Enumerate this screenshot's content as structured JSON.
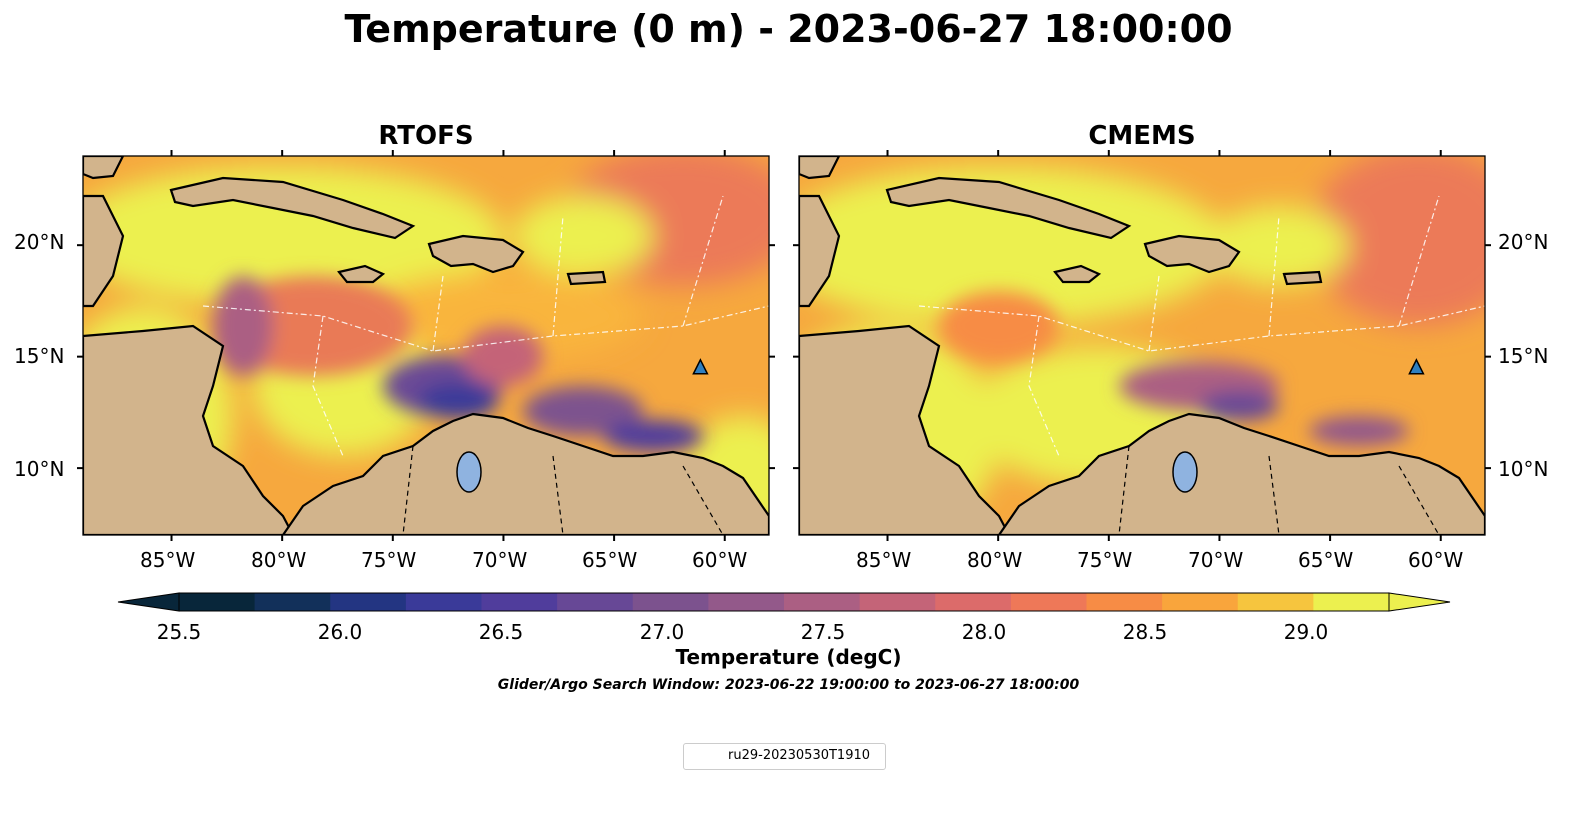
{
  "figure": {
    "title": "Temperature (0 m) - 2023-06-27 18:00:00",
    "search_window": "Glider/Argo Search Window: 2023-06-22 19:00:00 to 2023-06-27 18:00:00"
  },
  "panels": [
    {
      "title": "RTOFS",
      "marker": {
        "lon": -61.1,
        "lat": 14.5
      }
    },
    {
      "title": "CMEMS",
      "marker": {
        "lon": -61.1,
        "lat": 14.5
      }
    }
  ],
  "map_extent": {
    "lon_min": -89,
    "lon_max": -58,
    "lat_min": 7,
    "lat_max": 24
  },
  "axes": {
    "x_ticks": [
      "85°W",
      "80°W",
      "75°W",
      "70°W",
      "65°W",
      "60°W"
    ],
    "y_ticks": [
      "20°N",
      "15°N",
      "10°N"
    ]
  },
  "colorbar": {
    "label": "Temperature (degC)",
    "tick_labels": [
      "25.5",
      "26.0",
      "26.5",
      "27.0",
      "27.5",
      "28.0",
      "28.5",
      "29.0"
    ],
    "range": [
      25.5,
      29.25
    ],
    "extend": "both",
    "colors": [
      "#08263a",
      "#12305a",
      "#233582",
      "#3a3a99",
      "#503d9c",
      "#674896",
      "#7c528e",
      "#93598a",
      "#ab5f83",
      "#c46478",
      "#dc6b6a",
      "#ee7858",
      "#f78c45",
      "#f9a53c",
      "#f6c53e",
      "#ecf04f"
    ]
  },
  "colors": {
    "land": "#d2b48c",
    "lake": "#8fb3e0",
    "warm_ocean": "#f6a83e",
    "marker": "#2f7fc0"
  },
  "legend": {
    "label": "ru29-20230530T1910",
    "marker_icon": "triangle-marker-icon"
  }
}
